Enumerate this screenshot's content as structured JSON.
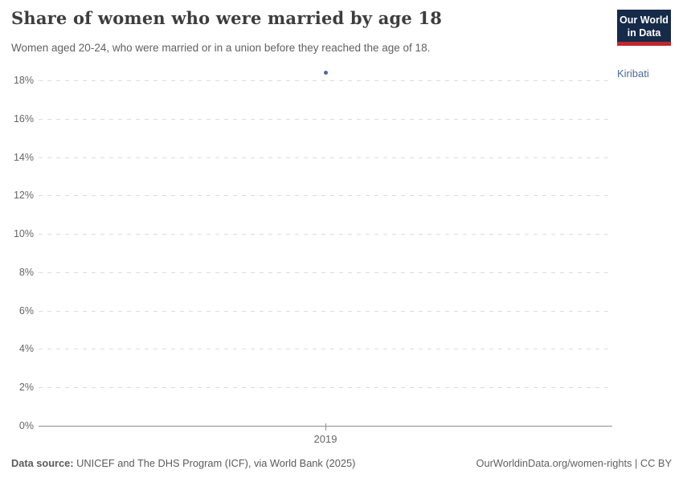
{
  "header": {
    "title": "Share of women who were married by age 18",
    "subtitle": "Women aged 20-24, who were married or in a union before they reached the age of 18.",
    "logo": {
      "line1": "Our World",
      "line2": "in Data",
      "bg_color": "#162a4a",
      "bar_color": "#be282d"
    }
  },
  "chart_data": {
    "type": "scatter",
    "title": "Share of women who were married by age 18",
    "series": [
      {
        "name": "Kiribati",
        "color": "#4c6a9c",
        "points": [
          {
            "x": 2019,
            "y": 18.4
          }
        ]
      }
    ],
    "x_ticks": [
      2019
    ],
    "y_ticks": [
      0,
      2,
      4,
      6,
      8,
      10,
      12,
      14,
      16,
      18
    ],
    "y_tick_format": "%",
    "ylim": [
      0,
      18.5
    ],
    "grid": true,
    "gridline_color": "#dcdcdc",
    "axis_color": "#8f8f8f",
    "tick_label_color": "#666666",
    "legend_position": "right"
  },
  "entity_label": "Kiribati",
  "footer": {
    "source_label": "Data source:",
    "source_text": " UNICEF and The DHS Program (ICF), via World Bank (2025)",
    "rights_text": "OurWorldinData.org/women-rights | CC BY"
  }
}
